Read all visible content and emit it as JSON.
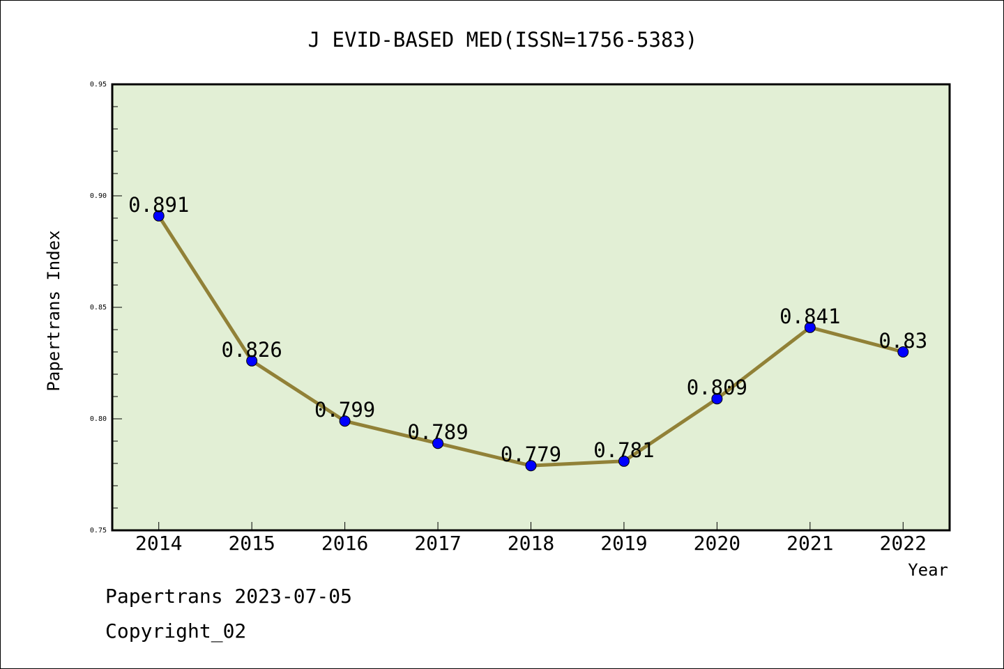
{
  "chart_data": {
    "type": "line",
    "title": "J EVID-BASED MED(ISSN=1756-5383)",
    "xlabel": "Year",
    "ylabel": "Papertrans Index",
    "categories": [
      "2014",
      "2015",
      "2016",
      "2017",
      "2018",
      "2019",
      "2020",
      "2021",
      "2022"
    ],
    "values": [
      0.891,
      0.826,
      0.799,
      0.789,
      0.779,
      0.781,
      0.809,
      0.841,
      0.83
    ],
    "data_labels": [
      "0.891",
      "0.826",
      "0.799",
      "0.789",
      "0.779",
      "0.781",
      "0.809",
      "0.841",
      "0.83"
    ],
    "ylim": [
      0.75,
      0.95
    ],
    "yticks": [
      "0.75",
      "0.80",
      "0.85",
      "0.90",
      "0.95"
    ],
    "grid": false,
    "colors": {
      "plot_background": "#e2efd5",
      "line": "#918137",
      "marker": "#0000ff"
    }
  },
  "footer": {
    "line1": "Papertrans 2023-07-05",
    "line2": "Copyright_02"
  }
}
